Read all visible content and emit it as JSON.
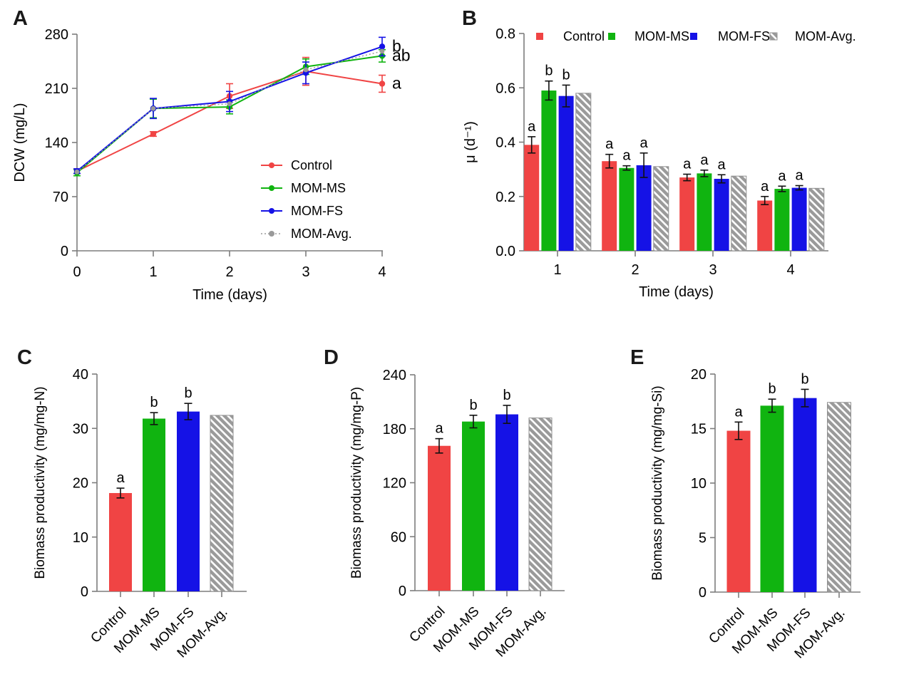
{
  "panels": {
    "A": {
      "label": "A"
    },
    "B": {
      "label": "B"
    },
    "C": {
      "label": "C"
    },
    "D": {
      "label": "D"
    },
    "E": {
      "label": "E"
    }
  },
  "colors": {
    "control": "#f04444",
    "mom_ms": "#10b410",
    "mom_fs": "#1512e6",
    "mom_avg": "#9a9a9a",
    "axis": "#7d7d7d",
    "error_bar": "#111111"
  },
  "chart_data": [
    {
      "panel": "A",
      "type": "line",
      "xlabel": "Time (days)",
      "ylabel": "DCW (mg/L)",
      "x": [
        0,
        1,
        2,
        3,
        4
      ],
      "xtick_labels": [
        "0",
        "1",
        "2",
        "3",
        "4"
      ],
      "xlim": [
        0,
        4
      ],
      "ylim": [
        0,
        280
      ],
      "yticks": [
        0,
        70,
        140,
        210,
        280
      ],
      "ytick_labels": [
        "0",
        "70",
        "140",
        "210",
        "280"
      ],
      "grid": false,
      "legend_position": "inside bottom-right",
      "series": [
        {
          "name": "Control",
          "color": "#f04444",
          "line": "solid",
          "values": [
            103,
            151,
            200,
            232,
            216
          ],
          "errors": [
            3,
            3,
            16,
            18,
            11
          ],
          "end_label": "a"
        },
        {
          "name": "MOM-MS",
          "color": "#10b410",
          "line": "solid",
          "values": [
            101,
            184,
            186,
            238,
            252
          ],
          "errors": [
            4,
            12,
            9,
            10,
            8
          ],
          "end_label": "ab"
        },
        {
          "name": "MOM-FS",
          "color": "#1512e6",
          "line": "solid",
          "values": [
            103,
            184,
            193,
            230,
            264
          ],
          "errors": [
            3,
            13,
            13,
            14,
            12
          ],
          "end_label": "b"
        },
        {
          "name": "MOM-Avg.",
          "color": "#9a9a9a",
          "line": "dotted",
          "values": [
            102,
            184,
            190,
            234,
            258
          ],
          "errors": [
            0,
            0,
            0,
            0,
            0
          ],
          "end_label": ""
        }
      ]
    },
    {
      "panel": "B",
      "type": "bar",
      "grouped": true,
      "xlabel": "Time (days)",
      "ylabel": "μ (d⁻¹)",
      "categories": [
        "1",
        "2",
        "3",
        "4"
      ],
      "ylim": [
        0,
        0.8
      ],
      "yticks": [
        0,
        0.2,
        0.4,
        0.6,
        0.8
      ],
      "ytick_labels": [
        "0.0",
        "0.2",
        "0.4",
        "0.6",
        "0.8"
      ],
      "legend_position": "top",
      "series": [
        {
          "name": "Control",
          "color": "#f04444",
          "hatch": false,
          "values": [
            0.39,
            0.33,
            0.27,
            0.185
          ],
          "errors": [
            0.03,
            0.025,
            0.012,
            0.015
          ],
          "letters": [
            "a",
            "a",
            "a",
            "a"
          ]
        },
        {
          "name": "MOM-MS",
          "color": "#10b410",
          "hatch": false,
          "values": [
            0.59,
            0.305,
            0.285,
            0.228
          ],
          "errors": [
            0.035,
            0.008,
            0.012,
            0.01
          ],
          "letters": [
            "b",
            "a",
            "a",
            "a"
          ]
        },
        {
          "name": "MOM-FS",
          "color": "#1512e6",
          "hatch": false,
          "values": [
            0.57,
            0.315,
            0.265,
            0.232
          ],
          "errors": [
            0.04,
            0.045,
            0.015,
            0.008
          ],
          "letters": [
            "b",
            "a",
            "a",
            "a"
          ]
        },
        {
          "name": "MOM-Avg.",
          "color": "#9a9a9a",
          "hatch": true,
          "values": [
            0.58,
            0.31,
            0.275,
            0.23
          ],
          "errors": [
            0,
            0,
            0,
            0
          ],
          "letters": [
            "",
            "",
            "",
            ""
          ]
        }
      ]
    },
    {
      "panel": "C",
      "type": "bar",
      "grouped": false,
      "xlabel": "",
      "ylabel": "Biomass productivity (mg/mg-N)",
      "categories": [
        "Control",
        "MOM-MS",
        "MOM-FS",
        "MOM-Avg."
      ],
      "values": [
        18.1,
        31.8,
        33.1,
        32.4
      ],
      "errors": [
        0.9,
        1.1,
        1.5,
        0
      ],
      "letters": [
        "a",
        "b",
        "b",
        ""
      ],
      "colors": [
        "#f04444",
        "#10b410",
        "#1512e6",
        "#9a9a9a"
      ],
      "hatch_index": 3,
      "ylim": [
        0,
        40
      ],
      "yticks": [
        0,
        10,
        20,
        30,
        40
      ],
      "ytick_labels": [
        "0",
        "10",
        "20",
        "30",
        "40"
      ]
    },
    {
      "panel": "D",
      "type": "bar",
      "grouped": false,
      "xlabel": "",
      "ylabel": "Biomass productivity (mg/mg-P)",
      "categories": [
        "Control",
        "MOM-MS",
        "MOM-FS",
        "MOM-Avg."
      ],
      "values": [
        161,
        188,
        196,
        192
      ],
      "errors": [
        8,
        7,
        10,
        0
      ],
      "letters": [
        "a",
        "b",
        "b",
        ""
      ],
      "colors": [
        "#f04444",
        "#10b410",
        "#1512e6",
        "#9a9a9a"
      ],
      "hatch_index": 3,
      "ylim": [
        0,
        240
      ],
      "yticks": [
        0,
        60,
        120,
        180,
        240
      ],
      "ytick_labels": [
        "0",
        "60",
        "120",
        "180",
        "240"
      ]
    },
    {
      "panel": "E",
      "type": "bar",
      "grouped": false,
      "xlabel": "",
      "ylabel": "Biomass productivity (mg/mg-Si)",
      "categories": [
        "Control",
        "MOM-MS",
        "MOM-FS",
        "MOM-Avg."
      ],
      "values": [
        14.8,
        17.1,
        17.8,
        17.4
      ],
      "errors": [
        0.8,
        0.6,
        0.8,
        0
      ],
      "letters": [
        "a",
        "b",
        "b",
        ""
      ],
      "colors": [
        "#f04444",
        "#10b410",
        "#1512e6",
        "#9a9a9a"
      ],
      "hatch_index": 3,
      "ylim": [
        0,
        20
      ],
      "yticks": [
        0,
        5,
        10,
        15,
        20
      ],
      "ytick_labels": [
        "0",
        "5",
        "10",
        "15",
        "20"
      ]
    }
  ]
}
